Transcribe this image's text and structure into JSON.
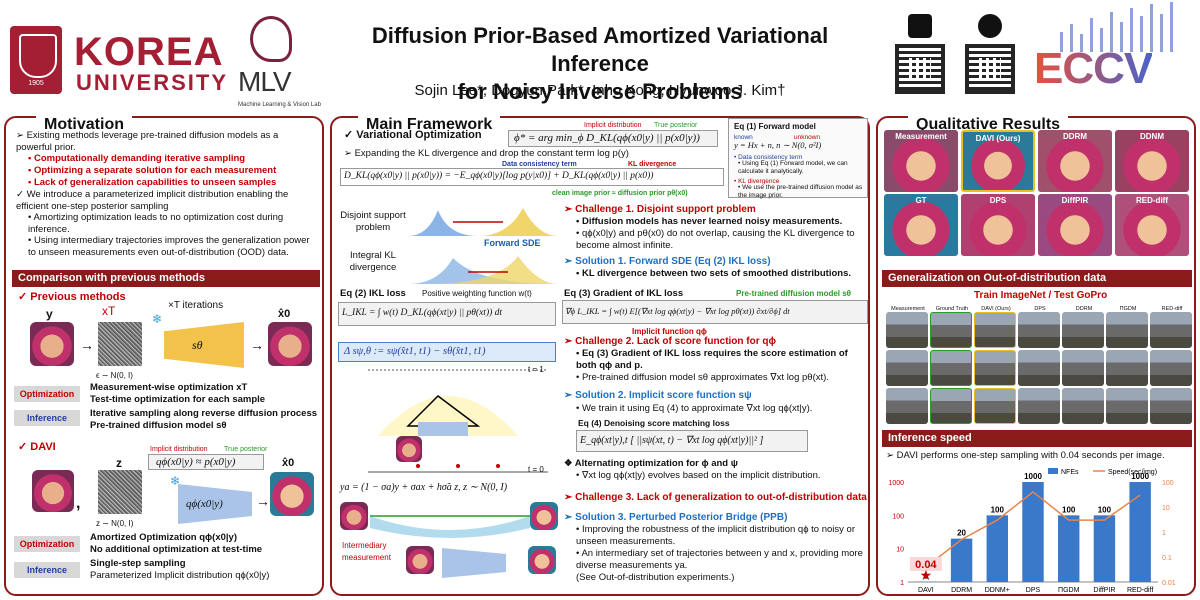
{
  "header": {
    "university_line1": "KOREA",
    "university_line2": "UNIVERSITY",
    "seal_year": "1905",
    "lab_name": "MLV",
    "lab_subtitle": "Machine Learning & Vision Lab",
    "title_line1": "Diffusion Prior-Based Amortized Variational Inference",
    "title_line2": "for Noisy Inverse Problems",
    "authors": "Sojin Lee*, Dogyun Park*, Inho Kong, Hyunwoo J. Kim†",
    "conference": "ECCV"
  },
  "motivation": {
    "title": "Motivation",
    "p1": "➢ Existing methods leverage pre-trained diffusion models as a powerful prior.",
    "b1": "• Computationally demanding iterative sampling",
    "b2": "• Optimizing a separate solution for each measurement",
    "b3": "• Lack of generalization capabilities to unseen samples",
    "p2": "✓ We introduce a parameterized implicit distribution enabling the efficient one-step posterior sampling",
    "b4": "• Amortizing optimization leads to no optimization cost during inference.",
    "b5": "• Using intermediary trajectories improves the generalization power to unseen measurements even out-of-distribution (OOD) data."
  },
  "comparison": {
    "title": "Comparison with previous methods",
    "prev_title": "✓ Previous methods",
    "iterations": "×T iterations",
    "net_label": "sθ",
    "y_label": "y",
    "xT_label": "xT",
    "eps_label": "ϵ ∼ N(0, I)",
    "x0_label": "x̂0",
    "opt_tag": "Optimization",
    "inf_tag": "Inference",
    "prev_opt1": "Measurement-wise optimization xT",
    "prev_opt2": "Test-time optimization for each sample",
    "prev_inf1": "Iterative sampling along reverse diffusion process",
    "prev_inf2": "Pre-trained diffusion model sθ",
    "davi_title": "✓ DAVI",
    "impl_label": "Implicit distribution",
    "true_label": "True posterior",
    "davi_eq": "qϕ(x0|y) ≈ p(x0|y)",
    "davi_net": "qϕ(x0|y)",
    "z_label": "z",
    "z_eq": "z ∼ N(0, I)",
    "davi_opt1": "Amortized Optimization qϕ(x0|y)",
    "davi_opt2": "No additional optimization at test-time",
    "davi_inf1": "Single-step sampling",
    "davi_inf2": "Parameterized Implicit distribution qϕ(x0|y)"
  },
  "framework": {
    "title": "Main Framework",
    "vo": "✓ Variational Optimization",
    "vo_eq": "ϕ* = arg min_ϕ D_KL(qϕ(x0|y) || p(x0|y))",
    "impl": "Implicit distribution",
    "true": "True posterior",
    "expand": "➢ Expanding the KL divergence and drop the constant term log p(y)",
    "dc": "Data consistency term",
    "kl": "KL divergence",
    "main_eq": "D_KL(qϕ(x0|y) || p(x0|y)) = −E_qϕ(x0|y)[log p(y|x0)] + D_KL(qϕ(x0|y) || p(x0))",
    "clean_prior": "clean image prior ≈ diffusion prior pθ(x0)",
    "eq1_title": "Eq (1) Forward model",
    "eq1_known": "known",
    "eq1_unknown": "unknown",
    "eq1": "y = Hx + n,   n ∼ N(0, σ²I)",
    "eq1_dc": "• Data consistency term",
    "eq1_dc2": "• Using Eq (1) Forward model, we can calculate it analytically.",
    "eq1_kl": "• KL divergence",
    "eq1_kl2": "• We use the pre-trained diffusion model as the image prior.",
    "dsp": "Disjoint support problem",
    "ikl_div": "Integral KL divergence",
    "fwd_sde": "Forward SDE",
    "ch1": "➢ Challenge 1. Disjoint support problem",
    "ch1_b1": "• Diffusion models has never learned noisy measurements.",
    "ch1_b2": "• qϕ(x0|y) and pθ(x0) do not overlap, causing the KL divergence to become almost infinite.",
    "so1": "➢ Solution 1. Forward SDE (Eq (2) IKL loss)",
    "so1_b1": "• KL divergence between two sets of smoothed distributions.",
    "eq2_title": "Eq (2) IKL loss",
    "weight_fn": "Positive weighting function w(t)",
    "eq2": "L_IKL = ∫ w(t) D_KL(qϕ(xt|y) || pθ(xt)) dt",
    "eq3_title": "Eq (3) Gradient of IKL loss",
    "pre_diff": "Pre-trained diffusion model sθ",
    "impl_fn": "Implicit function qϕ",
    "eq3": "∇ϕ L_IKL = ∫ w(t) E[(∇xt log qϕ(xt|y) − ∇xt log pθ(xt)) ∂xt/∂ϕ] dt",
    "delta_eq": "Δ sψ,θ := sψ(x̂t1, t1) − sθ(x̂t1, t1)",
    "ch2": "➢ Challenge 2. Lack of score function for qϕ",
    "ch2_b1": "• Eq (3) Gradient of IKL loss requires the score estimation of both qϕ and p.",
    "ch2_b2": "• Pre-trained diffusion model sθ approximates ∇xt log pθ(xt).",
    "so2": "➢ Solution 2. Implicit score function sψ",
    "so2_b1": "• We train it using Eq (4) to approximate ∇xt log qϕ(xt|y).",
    "eq4_title": "Eq (4) Denoising score matching loss",
    "eq4": "E_qϕ(xt|y),t [ ||sψ(xt, t) − ∇xt log qϕ(xt|y)||² ]",
    "alt": "❖ Alternating optimization for ϕ and ψ",
    "alt_b1": "• ∇xt log qϕ(xt|y) evolves based on the implicit distribution.",
    "ch3": "➢ Challenge 3. Lack of generalization to out-of-distribution data",
    "so3": "➢ Solution 3. Perturbed Posterior Bridge (PPB)",
    "so3_b1": "• Improving the robustness of the implicit distribution qϕ to noisy or unseen measurements.",
    "so3_b2": "• An intermediary set of trajectories between y and x, providing more diverse measurements ya.",
    "so3_b3": "(See Out-of-distribution experiments.)",
    "ppb_eq": "ya = (1 − σa)y + σax + hσ̃a z,  z ∼ N(0, I)",
    "inter": "Intermediary measurement",
    "t1": "t = 1",
    "t0": "t = 0"
  },
  "qualitative": {
    "title": "Qualitative Results",
    "labels": [
      "Measurement",
      "DAVI (Ours)",
      "DDRM",
      "DDNM",
      "GT",
      "DPS",
      "DiffPIR",
      "RED-diff"
    ]
  },
  "generalization": {
    "title": "Generalization on Out-of-distribution data",
    "train_test": "Train ImageNet / Test GoPro",
    "cols": [
      "Measurement",
      "Ground Truth",
      "DAVI (Ours)",
      "DPS",
      "DDRM",
      "ΠGDM",
      "RED-diff"
    ]
  },
  "speed": {
    "title": "Inference speed",
    "desc": "➢ DAVI performs one-step sampling with 0.04 seconds per image.",
    "legend_nfe": "NFEs",
    "legend_speed": "Speed(sec/img)",
    "highlight": "0.04"
  },
  "chart_data": {
    "type": "bar",
    "categories": [
      "DAVI",
      "DDRM",
      "DDNM+",
      "DPS",
      "ΠGDM",
      "DiffPIR",
      "RED-diff"
    ],
    "series": [
      {
        "name": "NFEs",
        "values": [
          1,
          20,
          100,
          1000,
          100,
          100,
          1000
        ]
      },
      {
        "name": "Speed(sec/img)",
        "values": [
          0.04,
          0.5,
          3,
          40,
          3,
          3,
          30
        ]
      }
    ],
    "y_left_ticks": [
      "1",
      "10",
      "100",
      "1000"
    ],
    "y_right_ticks": [
      "0.01",
      "0.1",
      "1",
      "10",
      "100"
    ],
    "left_scale": "log",
    "right_scale": "log",
    "colors": {
      "bar": "#3a78c9",
      "line": "#e8834a",
      "highlight": "#c00000"
    }
  }
}
